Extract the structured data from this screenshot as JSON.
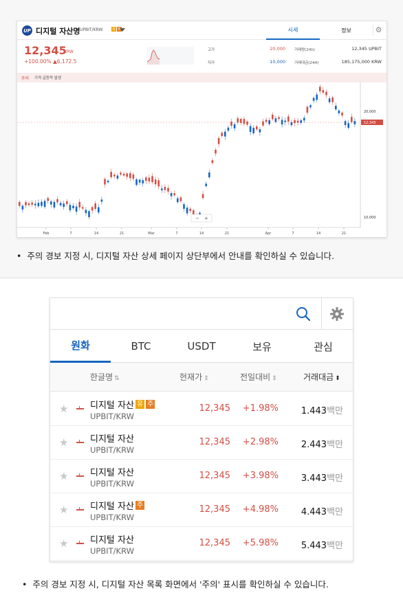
{
  "detail": {
    "logo_text": "UP",
    "asset_name": "디지털 자산명",
    "asset_code": "UPBIT/KRW",
    "badges": [
      "유",
      "주"
    ],
    "tabs": [
      "시세",
      "정보"
    ],
    "price": "12,345",
    "price_unit": "KRW",
    "change": "+100.00% ▲6,172.5",
    "stats": [
      {
        "label": "고가",
        "value": "20,000",
        "color": "#d24f45"
      },
      {
        "label": "저가",
        "value": "10,000",
        "color": "#1565c0"
      },
      {
        "label": "거래량(24h)",
        "value": "12,345 UPBIT"
      },
      {
        "label": "거래대금(24H)",
        "value": "185,175,000 KRW"
      }
    ],
    "notice_tag": "주의",
    "notice_text": "가격 급등락 발생",
    "chart": {
      "x_ticks": [
        "Feb",
        "7",
        "14",
        "21",
        "Mar",
        "7",
        "14",
        "21",
        "Apr",
        "7",
        "14",
        "21"
      ],
      "y_ticks": [
        "20,000",
        "10,000"
      ],
      "current_label": "12,345",
      "zoom_minus": "−",
      "zoom_plus": "+"
    }
  },
  "caption1": "주의 경보 지정 시, 디지털 자산 상세 페이지 상단부에서 안내를 확인하실 수 있습니다.",
  "list": {
    "search": {
      "placeholder": "",
      "value": ""
    },
    "tabs": [
      "원화",
      "BTC",
      "USDT",
      "보유",
      "관심"
    ],
    "active_tab": "원화",
    "headers": {
      "name": "한글명",
      "price": "현재가",
      "change": "전일대비",
      "volume": "거래대금"
    },
    "rows": [
      {
        "name": "디지털 자산",
        "badges": [
          "유",
          "주"
        ],
        "code": "UPBIT/KRW",
        "price": "12,345",
        "change": "+1.98%",
        "volume": "1.443",
        "unit": "백만"
      },
      {
        "name": "디지털 자산",
        "badges": [],
        "code": "UPBIT/KRW",
        "price": "12,345",
        "change": "+2.98%",
        "volume": "2.443",
        "unit": "백만"
      },
      {
        "name": "디지털 자산",
        "badges": [],
        "code": "UPBIT/KRW",
        "price": "12,345",
        "change": "+3.98%",
        "volume": "3.443",
        "unit": "백만"
      },
      {
        "name": "디지털 자산",
        "badges": [
          "주"
        ],
        "code": "UPBIT/KRW",
        "price": "12,345",
        "change": "+4.98%",
        "volume": "4.443",
        "unit": "백만"
      },
      {
        "name": "디지털 자산",
        "badges": [],
        "code": "UPBIT/KRW",
        "price": "12,345",
        "change": "+5.98%",
        "volume": "5.443",
        "unit": "백만"
      }
    ]
  },
  "caption2": "주의 경보 지정 시, 디지털 자산 목록 화면에서 '주의' 표시를 확인하실 수 있습니다.",
  "colors": {
    "up": "#d24f45",
    "down": "#1565c0",
    "accent": "#1565c0"
  }
}
